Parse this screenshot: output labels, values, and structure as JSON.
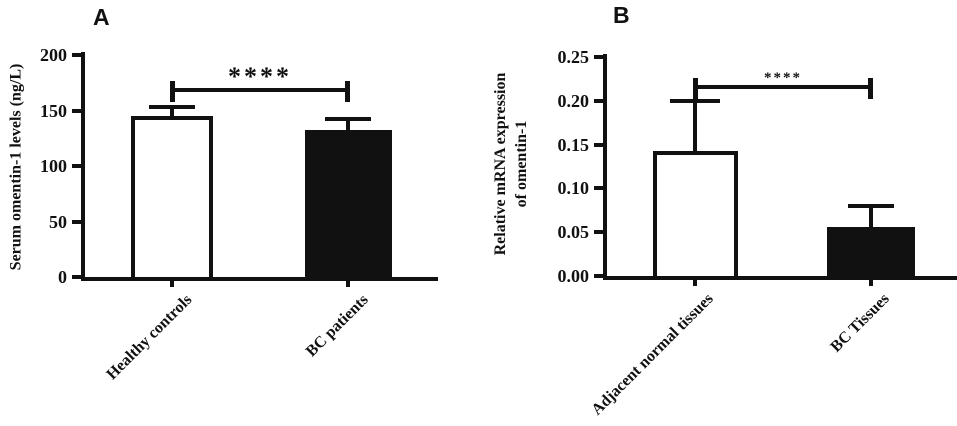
{
  "figure": {
    "background_color": "#ffffff",
    "ink_color": "#111111"
  },
  "chart_data": [
    {
      "type": "bar",
      "panel_label": "A",
      "title": "",
      "xlabel": "",
      "ylabel": "Serum omentin-1 levels (ng/L)",
      "ylabel_lines": [
        "Serum omentin-1 levels (ng/L)"
      ],
      "ylim": [
        0,
        200
      ],
      "yticks": [
        0,
        50,
        100,
        150,
        200
      ],
      "ytick_labels": [
        "0",
        "50",
        "100",
        "150",
        "200"
      ],
      "categories": [
        "Healthy controls",
        "BC patients"
      ],
      "series": [
        {
          "name": "mean + error",
          "values": [
            145,
            132
          ],
          "errors_plus": [
            8,
            10
          ],
          "bar_fills": [
            "#ffffff",
            "#111111"
          ]
        }
      ],
      "significance": {
        "label": "****",
        "between": [
          "Healthy controls",
          "BC patients"
        ],
        "bracket_y": 170
      },
      "grid": false,
      "legend": "none"
    },
    {
      "type": "bar",
      "panel_label": "B",
      "title": "",
      "xlabel": "",
      "ylabel": "Relative mRNA expression of omentin-1",
      "ylabel_lines": [
        "Relative mRNA expression",
        "of omentin-1"
      ],
      "ylim": [
        0,
        0.25
      ],
      "yticks": [
        0,
        0.05,
        0.1,
        0.15,
        0.2,
        0.25
      ],
      "ytick_labels": [
        "0.00",
        "0.05",
        "0.10",
        "0.15",
        "0.20",
        "0.25"
      ],
      "categories": [
        "Adjacent normal tissues",
        "BC Tissues"
      ],
      "series": [
        {
          "name": "mean + error",
          "values": [
            0.143,
            0.056
          ],
          "errors_plus": [
            0.057,
            0.024
          ],
          "bar_fills": [
            "#ffffff",
            "#111111"
          ]
        }
      ],
      "significance": {
        "label": "****",
        "between": [
          "Adjacent normal tissues",
          "BC Tissues"
        ],
        "bracket_y": 0.218
      },
      "grid": false,
      "legend": "none"
    }
  ]
}
